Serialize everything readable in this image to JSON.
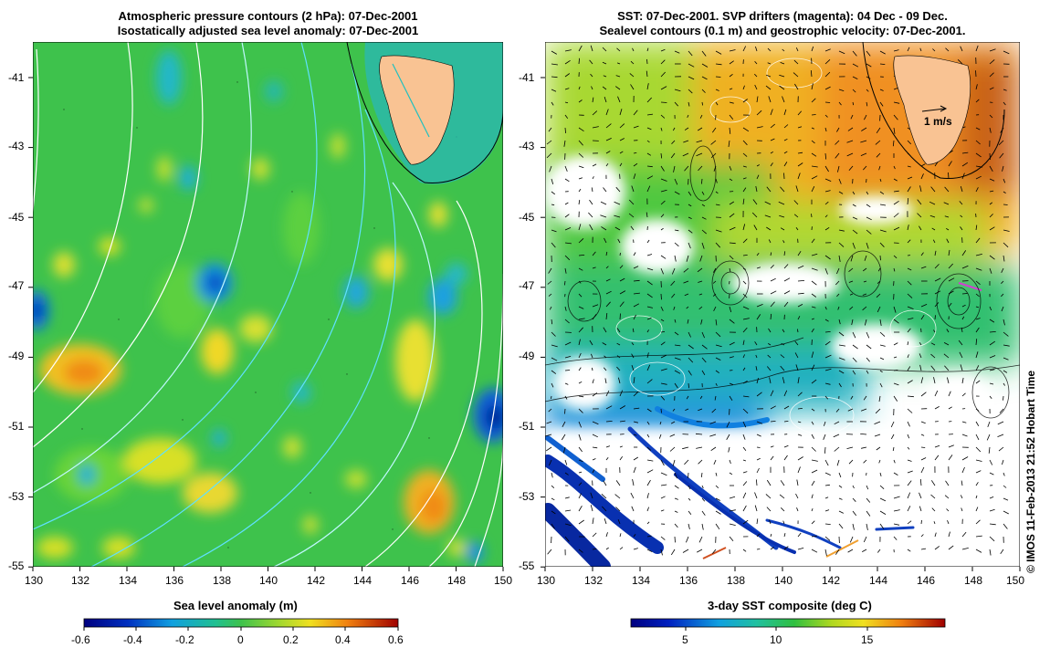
{
  "left_panel": {
    "title_line1": "Atmospheric pressure contours (2 hPa): 07-Dec-2001",
    "title_line2": "Isostatically adjusted sea level anomaly: 07-Dec-2001",
    "colorbar_title": "Sea level anomaly (m)",
    "colorbar_ticks": [
      "-0.6",
      "-0.4",
      "-0.2",
      "0",
      "0.2",
      "0.4",
      "0.6"
    ]
  },
  "right_panel": {
    "title_line1": "SST: 07-Dec-2001. SVP drifters (magenta): 04 Dec - 09 Dec.",
    "title_line2": "Sealevel contours (0.1 m) and geostrophic velocity: 07-Dec-2001.",
    "colorbar_title": "3-day SST composite (deg C)",
    "colorbar_ticks": [
      "5",
      "10",
      "15"
    ],
    "velocity_scale_label": "1 m/s"
  },
  "x_ticks": [
    "130",
    "132",
    "134",
    "136",
    "138",
    "140",
    "142",
    "144",
    "146",
    "148",
    "150"
  ],
  "y_ticks": [
    "-41",
    "-43",
    "-45",
    "-47",
    "-49",
    "-51",
    "-53",
    "-55"
  ],
  "credit": "© IMOS 11-Feb-2013 21:52 Hobart Time",
  "colors": {
    "land": "#f9c393",
    "left_background": "#3ec24c",
    "sst_warm": "#f0a020",
    "sst_cool": "#1e9ad6"
  }
}
